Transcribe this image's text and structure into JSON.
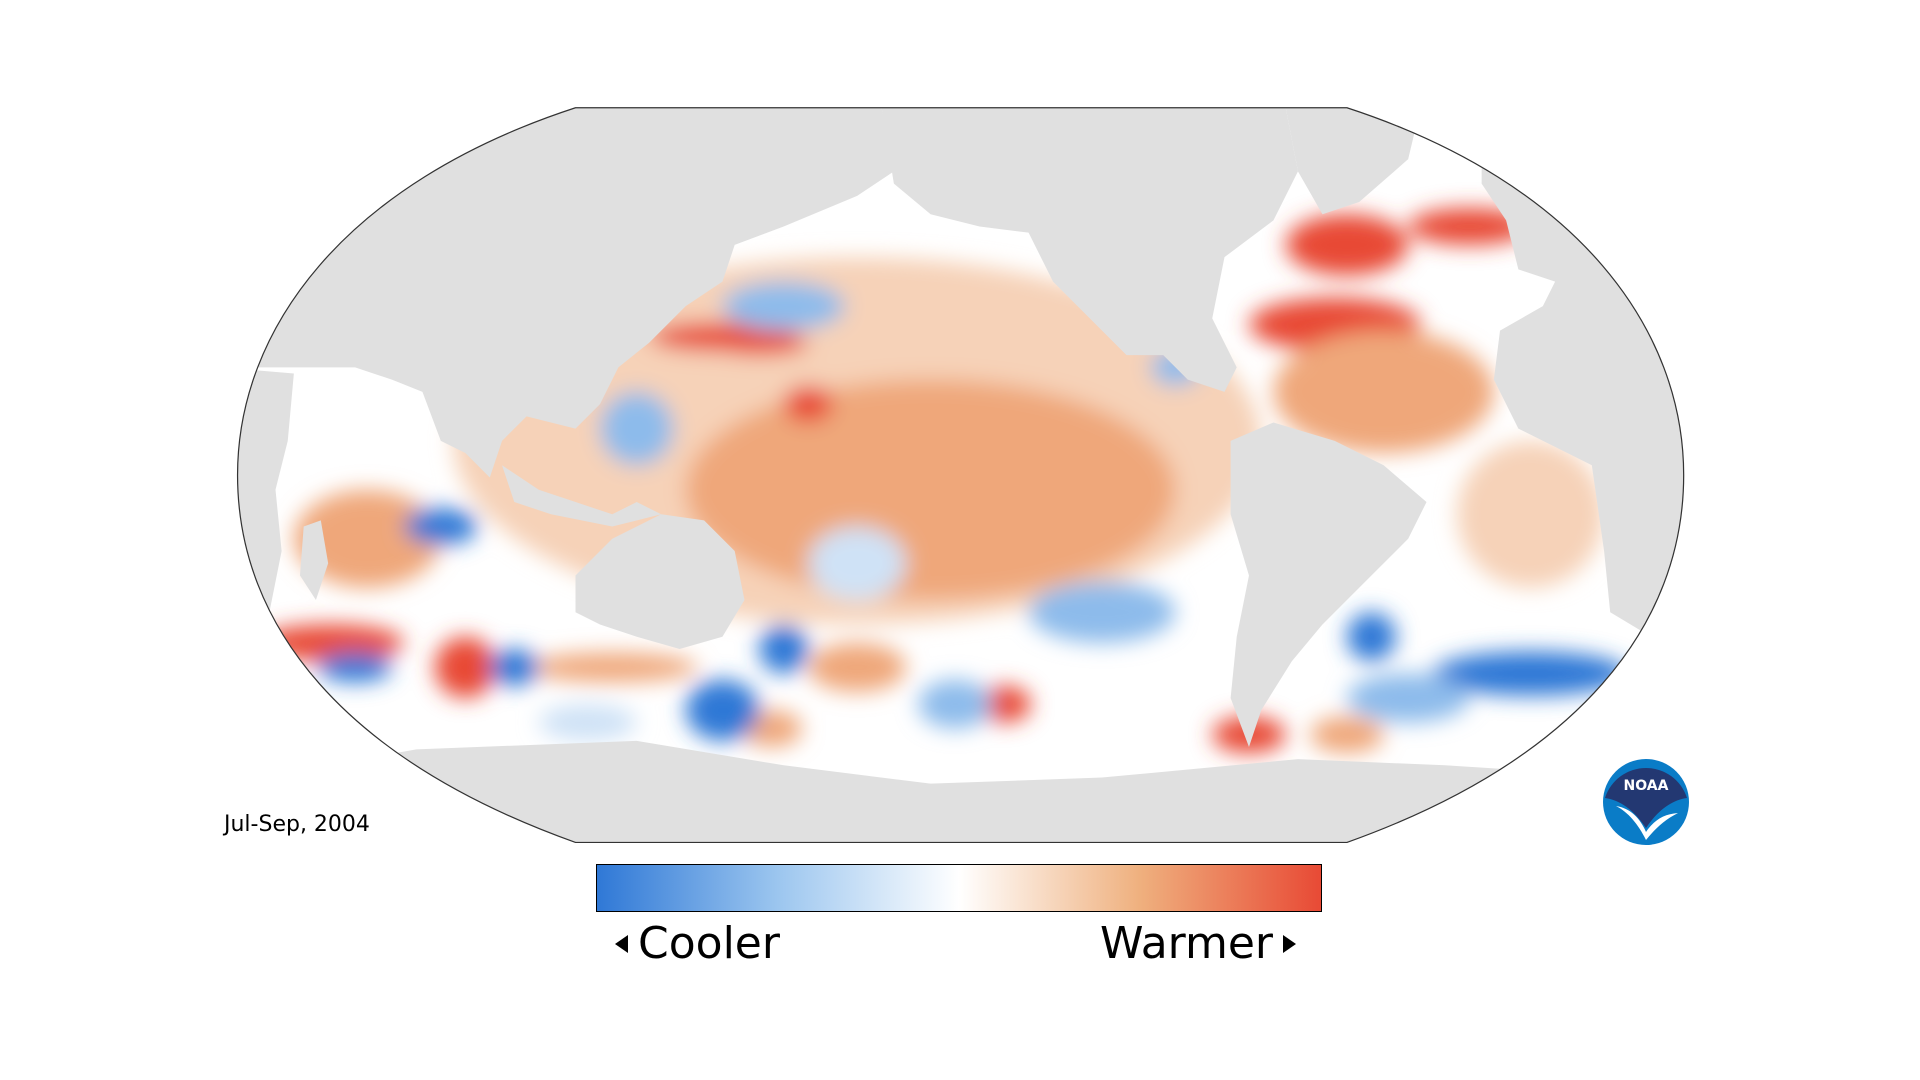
{
  "map": {
    "period": "Jul-Sep, 2004",
    "land_color": "#e0e0e0",
    "ocean_base_color": "#ffffff"
  },
  "legend": {
    "cooler_label": "Cooler",
    "warmer_label": "Warmer",
    "colors": [
      "#2f78d6",
      "#9cc6ef",
      "#ffffff",
      "#efb07e",
      "#e84a35"
    ]
  },
  "logo": {
    "text": "NOAA",
    "navy": "#233872",
    "blue": "#0a7cc7"
  }
}
